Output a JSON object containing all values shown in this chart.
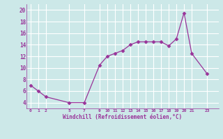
{
  "x": [
    0,
    1,
    2,
    5,
    7,
    9,
    10,
    11,
    12,
    13,
    14,
    15,
    16,
    17,
    18,
    19,
    20,
    21,
    23
  ],
  "y": [
    7,
    6,
    5,
    4,
    4,
    10.5,
    12,
    12.5,
    13,
    14,
    14.5,
    14.5,
    14.5,
    14.5,
    13.8,
    15,
    19.5,
    12.5,
    9
  ],
  "line_color": "#993399",
  "marker": "D",
  "marker_size": 2.5,
  "background_color": "#cce8e8",
  "grid_color": "#b0d8d8",
  "xlabel": "Windchill (Refroidissement éolien,°C)",
  "xlabel_color": "#993399",
  "tick_color": "#993399",
  "xlim": [
    -0.5,
    24.5
  ],
  "ylim": [
    3,
    21
  ],
  "yticks": [
    4,
    6,
    8,
    10,
    12,
    14,
    16,
    18,
    20
  ],
  "xticks": [
    0,
    1,
    2,
    5,
    7,
    9,
    10,
    11,
    12,
    13,
    14,
    15,
    16,
    17,
    18,
    19,
    20,
    21,
    23
  ]
}
